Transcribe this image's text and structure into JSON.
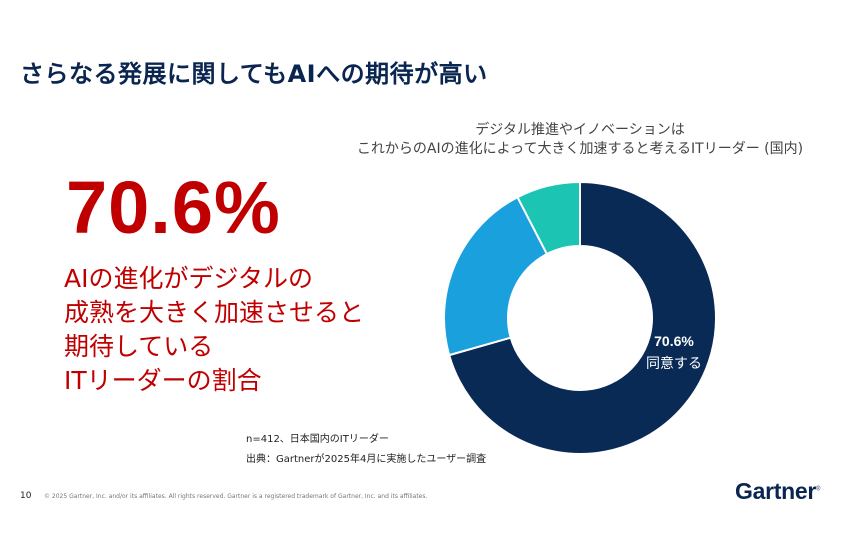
{
  "slide": {
    "title": "さらなる発展に関してもAIへの期待が高い",
    "page_number": "10",
    "copyright": "© 2025 Gartner, Inc. and/or its affiliates. All rights reserved. Gartner is a registered trademark of Gartner, Inc. and its affiliates.",
    "logo_text": "Gartner"
  },
  "highlight": {
    "value": "70.6%",
    "lines": [
      "AIの進化がデジタルの",
      "成熟を大きく加速させると",
      "期待している",
      "ITリーダーの割合"
    ]
  },
  "notes": {
    "sample": "n=412、日本国内のITリーダー",
    "source": "出典：Gartnerが2025年4月に実施したユーザー調査"
  },
  "colors": {
    "accent": "#c00000",
    "navy": "#0a2550"
  },
  "chart_data": {
    "type": "pie",
    "donut": true,
    "title_lines": [
      "デジタル推進やイノベーションは",
      "これからのAIの進化によって大きく加速すると考えるITリーダー (国内)"
    ],
    "slices": [
      {
        "value": 70.6,
        "color": "#0a2a56",
        "label_value": "70.6%",
        "label_text": "同意する"
      },
      {
        "value": 21.8,
        "color": "#1aa0dd",
        "label_value": "",
        "label_text": ""
      },
      {
        "value": 7.6,
        "color": "#1cc4b4",
        "label_value": "",
        "label_text": ""
      }
    ]
  }
}
